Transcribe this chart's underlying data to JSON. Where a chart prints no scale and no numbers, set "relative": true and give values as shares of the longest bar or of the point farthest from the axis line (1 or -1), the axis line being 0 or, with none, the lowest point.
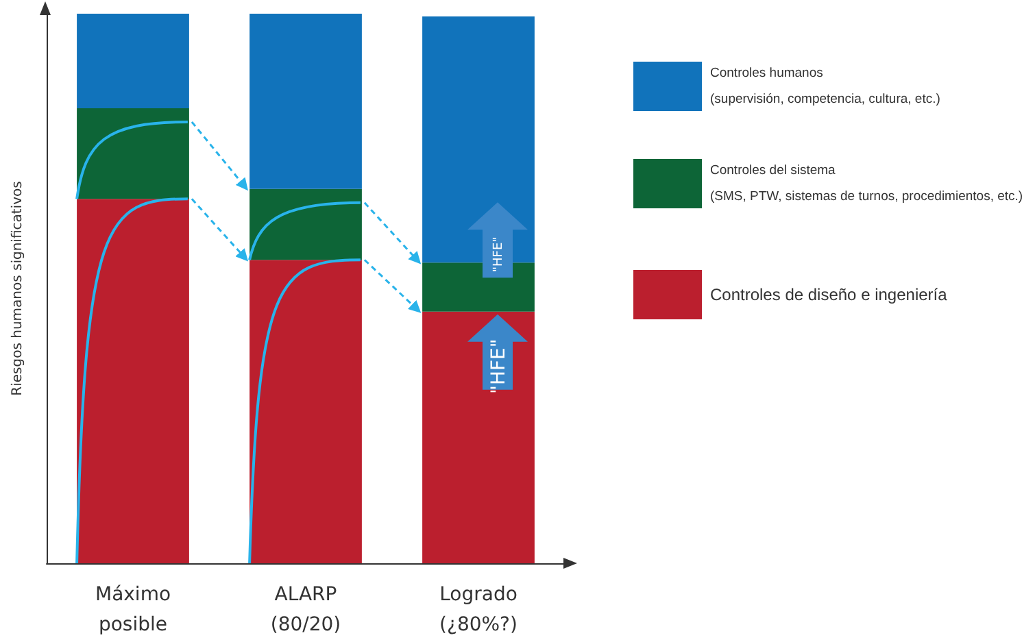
{
  "chart_data": {
    "type": "bar",
    "stacked": true,
    "relative": true,
    "ylabel": "Riesgos humanos significativos",
    "categories": [
      "Máximo\nposible",
      "ALARP\n(80/20)",
      "Logrado\n(¿80%?)"
    ],
    "series": [
      {
        "name": "Controles de diseño e ingeniería",
        "color": "#bb1f2e",
        "values": [
          0.663,
          0.552,
          0.458
        ]
      },
      {
        "name": "Controles del sistema\n(SMS, PTW, sistemas de turnos, procedimientos, etc.)",
        "color": "#0d6537",
        "values": [
          0.165,
          0.129,
          0.089
        ]
      },
      {
        "name": "Controles humanos\n(supervisión, competencia, cultura, etc.)",
        "color": "#1173bb",
        "values": [
          0.172,
          0.319,
          0.448
        ]
      }
    ],
    "legend": "right",
    "grid": false,
    "annotations": [
      "\"HFE\"",
      "\"HFE\""
    ]
  }
}
